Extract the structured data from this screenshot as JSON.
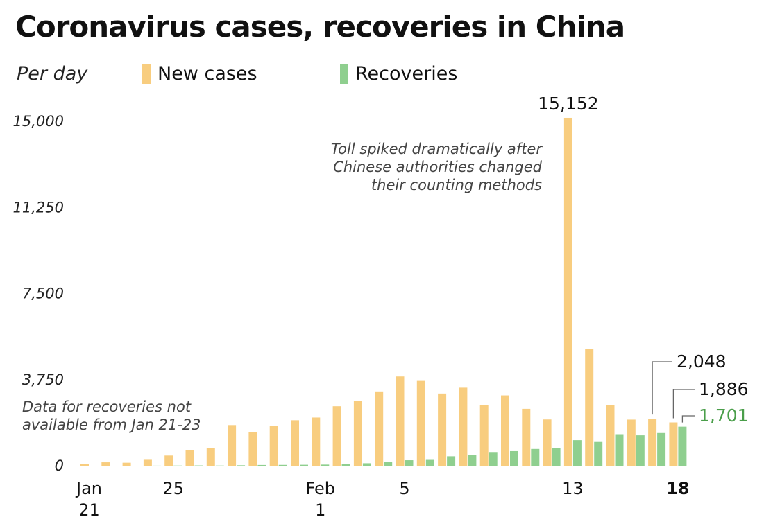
{
  "title": "Coronavirus cases, recoveries in China",
  "subtitle": "Per day",
  "legend": [
    {
      "label": "New cases",
      "color": "#f8cd7f"
    },
    {
      "label": "Recoveries",
      "color": "#8fcf8f"
    }
  ],
  "chart_data": {
    "type": "bar",
    "categories": [
      "Jan 21",
      "Jan 22",
      "Jan 23",
      "Jan 24",
      "Jan 25",
      "Jan 26",
      "Jan 27",
      "Jan 28",
      "Jan 29",
      "Jan 30",
      "Jan 31",
      "Feb 1",
      "Feb 2",
      "Feb 3",
      "Feb 4",
      "Feb 5",
      "Feb 6",
      "Feb 7",
      "Feb 8",
      "Feb 9",
      "Feb 10",
      "Feb 11",
      "Feb 12",
      "Feb 13",
      "Feb 14",
      "Feb 15",
      "Feb 16",
      "Feb 17",
      "Feb 18"
    ],
    "series": [
      {
        "name": "New cases",
        "color": "#f8cd7f",
        "values": [
          77,
          149,
          131,
          259,
          444,
          688,
          769,
          1771,
          1459,
          1737,
          1981,
          2099,
          2590,
          2829,
          3235,
          3887,
          3694,
          3143,
          3399,
          2656,
          3062,
          2478,
          2015,
          15152,
          5090,
          2641,
          2009,
          2048,
          1886
        ]
      },
      {
        "name": "Recoveries",
        "color": "#8fcf8f",
        "values": [
          null,
          null,
          null,
          3,
          8,
          13,
          8,
          20,
          33,
          37,
          42,
          50,
          60,
          108,
          156,
          240,
          255,
          411,
          482,
          596,
          635,
          730,
          767,
          1113,
          1035,
          1373,
          1325,
          1425,
          1701
        ]
      }
    ],
    "xtick_labels": [
      {
        "index": 0,
        "line1": "Jan",
        "line2": "21",
        "bold": false
      },
      {
        "index": 4,
        "line1": "25",
        "line2": "",
        "bold": false
      },
      {
        "index": 11,
        "line1": "Feb",
        "line2": "1",
        "bold": false
      },
      {
        "index": 15,
        "line1": "5",
        "line2": "",
        "bold": false
      },
      {
        "index": 23,
        "line1": "13",
        "line2": "",
        "bold": false
      },
      {
        "index": 28,
        "line1": "18",
        "line2": "",
        "bold": true
      }
    ],
    "yticks": [
      0,
      3750,
      7500,
      11250,
      15000
    ],
    "ytick_labels": [
      "0",
      "3,750",
      "7,500",
      "11,250",
      "15,000"
    ],
    "ylim": [
      0,
      15000
    ],
    "data_labels": [
      {
        "series": 0,
        "index": 23,
        "text": "15,152",
        "style": "top"
      },
      {
        "series": 0,
        "index": 27,
        "text": "2,048",
        "style": "leader"
      },
      {
        "series": 0,
        "index": 28,
        "text": "1,886",
        "style": "leader"
      },
      {
        "series": 1,
        "index": 28,
        "text": "1,701",
        "style": "leader"
      }
    ],
    "annotations": [
      {
        "lines": [
          "Toll spiked dramatically after",
          "Chinese authorities changed",
          "their counting methods"
        ],
        "anchor": "end"
      },
      {
        "lines": [
          "Data for recoveries not",
          "available from Jan 21-23"
        ],
        "anchor": "start"
      }
    ],
    "grid": false,
    "legend_position": "top-left"
  }
}
